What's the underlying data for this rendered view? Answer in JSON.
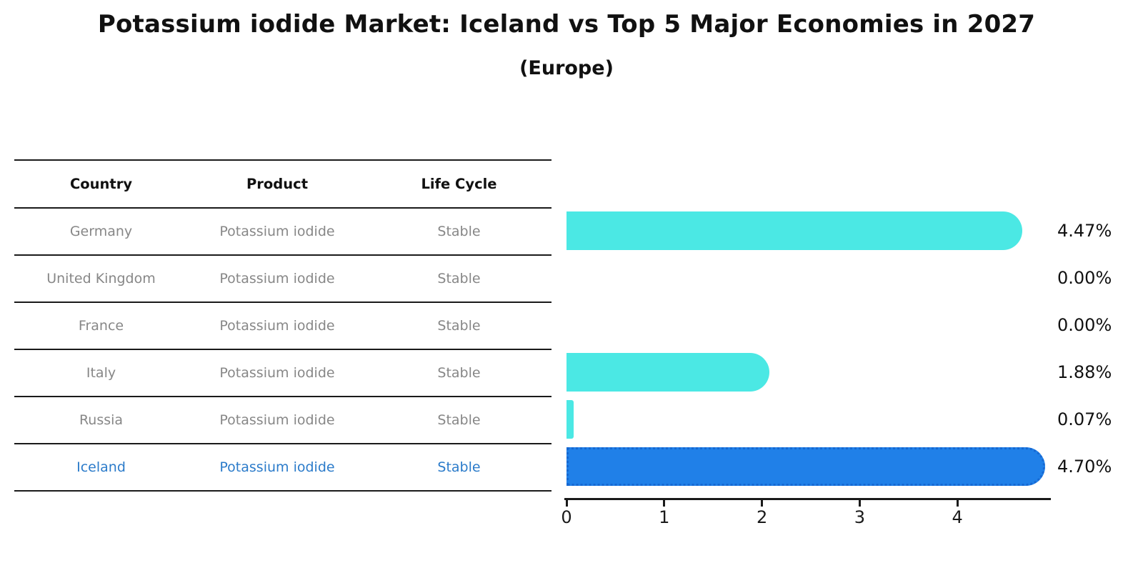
{
  "title": "Potassium iodide Market: Iceland vs Top 5 Major Economies in 2027",
  "subtitle": "(Europe)",
  "table": {
    "headers": [
      "Country",
      "Product",
      "Life Cycle"
    ],
    "rows": [
      {
        "country": "Germany",
        "product": "Potassium iodide",
        "life_cycle": "Stable",
        "highlight": false
      },
      {
        "country": "United Kingdom",
        "product": "Potassium iodide",
        "life_cycle": "Stable",
        "highlight": false
      },
      {
        "country": "France",
        "product": "Potassium iodide",
        "life_cycle": "Stable",
        "highlight": false
      },
      {
        "country": "Italy",
        "product": "Potassium iodide",
        "life_cycle": "Stable",
        "highlight": false
      },
      {
        "country": "Russia",
        "product": "Potassium iodide",
        "life_cycle": "Stable",
        "highlight": false
      },
      {
        "country": "Iceland",
        "product": "Potassium iodide",
        "life_cycle": "Stable",
        "highlight": true
      }
    ]
  },
  "chart_data": {
    "type": "bar",
    "orientation": "horizontal",
    "categories": [
      "Germany",
      "United Kingdom",
      "France",
      "Italy",
      "Russia",
      "Iceland"
    ],
    "values": [
      4.47,
      0.0,
      0.0,
      1.88,
      0.07,
      4.7
    ],
    "value_labels": [
      "4.47%",
      "0.00%",
      "0.00%",
      "1.88%",
      "0.07%",
      "4.70%"
    ],
    "x_ticks": [
      "0",
      "1",
      "2",
      "3",
      "4"
    ],
    "xlim": [
      0,
      4.95
    ],
    "grid": false,
    "legend": "none",
    "bar_colors": [
      "#4BE8E4",
      "#4BE8E4",
      "#4BE8E4",
      "#4BE8E4",
      "#4BE8E4",
      "#2080E8"
    ],
    "highlight_index": 5,
    "highlight_edge_style": "dotted"
  },
  "colors": {
    "bar_cyan": "#4BE8E4",
    "bar_blue": "#2080E8",
    "highlight_text": "#2b7bca",
    "cell_text": "#878787",
    "header_text": "#111111",
    "axis": "#1a1a1a",
    "background": "#ffffff"
  }
}
